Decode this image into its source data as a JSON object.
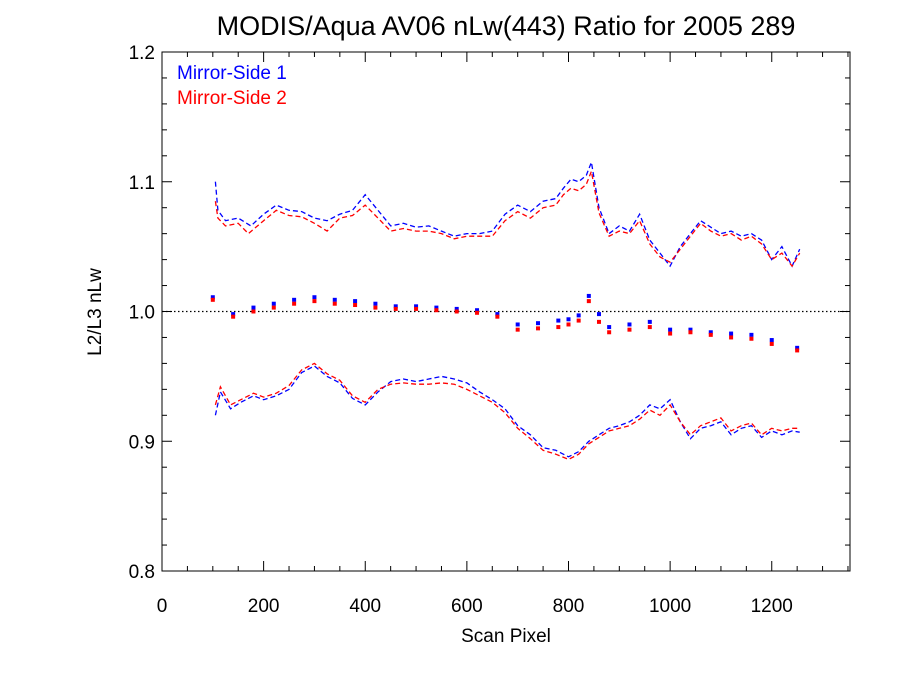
{
  "chart_data": {
    "type": "scatter",
    "title": "MODIS/Aqua AV06 nLw(443) Ratio for 2005 289",
    "xlabel": "Scan Pixel",
    "ylabel": "L2/L3 nLw",
    "xlim": [
      0,
      1354
    ],
    "ylim": [
      0.8,
      1.2
    ],
    "x_ticks": [
      0,
      200,
      400,
      600,
      800,
      1000,
      1200
    ],
    "x_tick_labels": [
      "0",
      "200",
      "400",
      "600",
      "800",
      "1000",
      "1200"
    ],
    "y_ticks": [
      0.8,
      0.9,
      1.0,
      1.1,
      1.2
    ],
    "y_tick_labels": [
      "0.8",
      "0.9",
      "1.0",
      "1.1",
      "1.2"
    ],
    "reference_line": {
      "y": 1.0,
      "style": "dotted",
      "color": "#000000"
    },
    "legend": {
      "placement": "top-left",
      "entries": [
        "Mirror-Side 1",
        "Mirror-Side 2"
      ]
    },
    "series": [
      {
        "name": "Mirror-Side 1",
        "color": "#0000ff",
        "points": [
          [
            100,
            1.011
          ],
          [
            140,
            0.998
          ],
          [
            180,
            1.003
          ],
          [
            220,
            1.006
          ],
          [
            260,
            1.009
          ],
          [
            300,
            1.011
          ],
          [
            340,
            1.009
          ],
          [
            380,
            1.008
          ],
          [
            420,
            1.006
          ],
          [
            460,
            1.004
          ],
          [
            500,
            1.004
          ],
          [
            540,
            1.003
          ],
          [
            580,
            1.002
          ],
          [
            620,
            1.001
          ],
          [
            660,
            0.998
          ],
          [
            700,
            0.99
          ],
          [
            740,
            0.991
          ],
          [
            780,
            0.993
          ],
          [
            800,
            0.994
          ],
          [
            820,
            0.997
          ],
          [
            840,
            1.012
          ],
          [
            860,
            0.998
          ],
          [
            880,
            0.988
          ],
          [
            920,
            0.99
          ],
          [
            960,
            0.992
          ],
          [
            1000,
            0.986
          ],
          [
            1040,
            0.986
          ],
          [
            1080,
            0.984
          ],
          [
            1120,
            0.983
          ],
          [
            1160,
            0.982
          ],
          [
            1200,
            0.978
          ],
          [
            1250,
            0.972
          ]
        ],
        "upper": [
          [
            105,
            1.1
          ],
          [
            110,
            1.078
          ],
          [
            125,
            1.07
          ],
          [
            150,
            1.072
          ],
          [
            175,
            1.066
          ],
          [
            200,
            1.075
          ],
          [
            225,
            1.082
          ],
          [
            250,
            1.078
          ],
          [
            275,
            1.077
          ],
          [
            300,
            1.072
          ],
          [
            325,
            1.07
          ],
          [
            350,
            1.075
          ],
          [
            375,
            1.078
          ],
          [
            400,
            1.09
          ],
          [
            425,
            1.078
          ],
          [
            450,
            1.066
          ],
          [
            475,
            1.068
          ],
          [
            500,
            1.065
          ],
          [
            525,
            1.066
          ],
          [
            550,
            1.062
          ],
          [
            575,
            1.058
          ],
          [
            600,
            1.06
          ],
          [
            625,
            1.06
          ],
          [
            650,
            1.062
          ],
          [
            675,
            1.075
          ],
          [
            700,
            1.082
          ],
          [
            725,
            1.077
          ],
          [
            750,
            1.085
          ],
          [
            775,
            1.087
          ],
          [
            790,
            1.095
          ],
          [
            805,
            1.102
          ],
          [
            820,
            1.1
          ],
          [
            835,
            1.105
          ],
          [
            845,
            1.115
          ],
          [
            860,
            1.08
          ],
          [
            880,
            1.06
          ],
          [
            900,
            1.066
          ],
          [
            920,
            1.062
          ],
          [
            940,
            1.075
          ],
          [
            960,
            1.055
          ],
          [
            980,
            1.045
          ],
          [
            1000,
            1.035
          ],
          [
            1020,
            1.05
          ],
          [
            1040,
            1.06
          ],
          [
            1060,
            1.07
          ],
          [
            1080,
            1.065
          ],
          [
            1100,
            1.06
          ],
          [
            1120,
            1.062
          ],
          [
            1140,
            1.058
          ],
          [
            1160,
            1.06
          ],
          [
            1180,
            1.055
          ],
          [
            1200,
            1.04
          ],
          [
            1220,
            1.05
          ],
          [
            1240,
            1.035
          ],
          [
            1255,
            1.048
          ]
        ],
        "lower": [
          [
            105,
            0.92
          ],
          [
            115,
            0.938
          ],
          [
            135,
            0.925
          ],
          [
            155,
            0.93
          ],
          [
            180,
            0.935
          ],
          [
            200,
            0.932
          ],
          [
            225,
            0.935
          ],
          [
            250,
            0.94
          ],
          [
            275,
            0.953
          ],
          [
            300,
            0.958
          ],
          [
            325,
            0.95
          ],
          [
            350,
            0.945
          ],
          [
            375,
            0.933
          ],
          [
            400,
            0.928
          ],
          [
            425,
            0.938
          ],
          [
            450,
            0.946
          ],
          [
            475,
            0.948
          ],
          [
            500,
            0.946
          ],
          [
            525,
            0.948
          ],
          [
            550,
            0.95
          ],
          [
            575,
            0.948
          ],
          [
            600,
            0.945
          ],
          [
            625,
            0.938
          ],
          [
            650,
            0.932
          ],
          [
            675,
            0.925
          ],
          [
            700,
            0.912
          ],
          [
            725,
            0.905
          ],
          [
            750,
            0.895
          ],
          [
            775,
            0.893
          ],
          [
            800,
            0.888
          ],
          [
            820,
            0.892
          ],
          [
            840,
            0.9
          ],
          [
            860,
            0.905
          ],
          [
            880,
            0.91
          ],
          [
            900,
            0.912
          ],
          [
            920,
            0.915
          ],
          [
            940,
            0.92
          ],
          [
            960,
            0.928
          ],
          [
            980,
            0.925
          ],
          [
            1000,
            0.932
          ],
          [
            1020,
            0.915
          ],
          [
            1040,
            0.902
          ],
          [
            1060,
            0.91
          ],
          [
            1080,
            0.912
          ],
          [
            1100,
            0.915
          ],
          [
            1120,
            0.905
          ],
          [
            1140,
            0.91
          ],
          [
            1160,
            0.912
          ],
          [
            1180,
            0.903
          ],
          [
            1200,
            0.908
          ],
          [
            1220,
            0.905
          ],
          [
            1240,
            0.908
          ],
          [
            1255,
            0.907
          ]
        ]
      },
      {
        "name": "Mirror-Side 2",
        "color": "#ff0000",
        "points": [
          [
            100,
            1.009
          ],
          [
            140,
            0.996
          ],
          [
            180,
            1.0
          ],
          [
            220,
            1.003
          ],
          [
            260,
            1.006
          ],
          [
            300,
            1.008
          ],
          [
            340,
            1.006
          ],
          [
            380,
            1.005
          ],
          [
            420,
            1.003
          ],
          [
            460,
            1.002
          ],
          [
            500,
            1.002
          ],
          [
            540,
            1.001
          ],
          [
            580,
            1.0
          ],
          [
            620,
            0.999
          ],
          [
            660,
            0.996
          ],
          [
            700,
            0.986
          ],
          [
            740,
            0.987
          ],
          [
            780,
            0.988
          ],
          [
            800,
            0.99
          ],
          [
            820,
            0.993
          ],
          [
            840,
            1.008
          ],
          [
            860,
            0.992
          ],
          [
            880,
            0.984
          ],
          [
            920,
            0.986
          ],
          [
            960,
            0.988
          ],
          [
            1000,
            0.983
          ],
          [
            1040,
            0.984
          ],
          [
            1080,
            0.982
          ],
          [
            1120,
            0.98
          ],
          [
            1160,
            0.979
          ],
          [
            1200,
            0.975
          ],
          [
            1250,
            0.97
          ]
        ],
        "upper": [
          [
            105,
            1.085
          ],
          [
            110,
            1.072
          ],
          [
            125,
            1.066
          ],
          [
            150,
            1.068
          ],
          [
            170,
            1.06
          ],
          [
            200,
            1.07
          ],
          [
            225,
            1.078
          ],
          [
            250,
            1.074
          ],
          [
            275,
            1.073
          ],
          [
            300,
            1.068
          ],
          [
            325,
            1.062
          ],
          [
            350,
            1.072
          ],
          [
            375,
            1.074
          ],
          [
            400,
            1.082
          ],
          [
            425,
            1.072
          ],
          [
            450,
            1.062
          ],
          [
            475,
            1.064
          ],
          [
            500,
            1.062
          ],
          [
            525,
            1.062
          ],
          [
            550,
            1.06
          ],
          [
            575,
            1.056
          ],
          [
            600,
            1.058
          ],
          [
            625,
            1.058
          ],
          [
            650,
            1.058
          ],
          [
            675,
            1.07
          ],
          [
            700,
            1.077
          ],
          [
            725,
            1.072
          ],
          [
            750,
            1.08
          ],
          [
            775,
            1.082
          ],
          [
            790,
            1.09
          ],
          [
            805,
            1.095
          ],
          [
            820,
            1.093
          ],
          [
            835,
            1.098
          ],
          [
            845,
            1.108
          ],
          [
            860,
            1.076
          ],
          [
            880,
            1.058
          ],
          [
            900,
            1.062
          ],
          [
            920,
            1.06
          ],
          [
            940,
            1.07
          ],
          [
            960,
            1.052
          ],
          [
            980,
            1.042
          ],
          [
            1000,
            1.038
          ],
          [
            1020,
            1.048
          ],
          [
            1040,
            1.058
          ],
          [
            1060,
            1.068
          ],
          [
            1080,
            1.062
          ],
          [
            1100,
            1.058
          ],
          [
            1120,
            1.06
          ],
          [
            1140,
            1.055
          ],
          [
            1160,
            1.058
          ],
          [
            1180,
            1.052
          ],
          [
            1200,
            1.04
          ],
          [
            1220,
            1.045
          ],
          [
            1240,
            1.035
          ],
          [
            1255,
            1.045
          ]
        ],
        "lower": [
          [
            105,
            0.928
          ],
          [
            115,
            0.942
          ],
          [
            135,
            0.928
          ],
          [
            155,
            0.932
          ],
          [
            180,
            0.937
          ],
          [
            200,
            0.934
          ],
          [
            225,
            0.937
          ],
          [
            250,
            0.943
          ],
          [
            275,
            0.955
          ],
          [
            300,
            0.96
          ],
          [
            325,
            0.952
          ],
          [
            350,
            0.947
          ],
          [
            375,
            0.935
          ],
          [
            400,
            0.93
          ],
          [
            425,
            0.94
          ],
          [
            450,
            0.944
          ],
          [
            475,
            0.945
          ],
          [
            500,
            0.944
          ],
          [
            525,
            0.944
          ],
          [
            550,
            0.945
          ],
          [
            575,
            0.944
          ],
          [
            600,
            0.94
          ],
          [
            625,
            0.935
          ],
          [
            650,
            0.93
          ],
          [
            675,
            0.922
          ],
          [
            700,
            0.91
          ],
          [
            725,
            0.902
          ],
          [
            750,
            0.893
          ],
          [
            775,
            0.89
          ],
          [
            800,
            0.886
          ],
          [
            820,
            0.89
          ],
          [
            840,
            0.898
          ],
          [
            860,
            0.903
          ],
          [
            880,
            0.908
          ],
          [
            900,
            0.91
          ],
          [
            920,
            0.912
          ],
          [
            940,
            0.917
          ],
          [
            960,
            0.924
          ],
          [
            980,
            0.92
          ],
          [
            1000,
            0.928
          ],
          [
            1020,
            0.915
          ],
          [
            1040,
            0.905
          ],
          [
            1060,
            0.912
          ],
          [
            1080,
            0.915
          ],
          [
            1100,
            0.918
          ],
          [
            1120,
            0.908
          ],
          [
            1140,
            0.912
          ],
          [
            1160,
            0.914
          ],
          [
            1180,
            0.905
          ],
          [
            1200,
            0.91
          ],
          [
            1220,
            0.908
          ],
          [
            1240,
            0.91
          ],
          [
            1255,
            0.91
          ]
        ]
      }
    ]
  }
}
